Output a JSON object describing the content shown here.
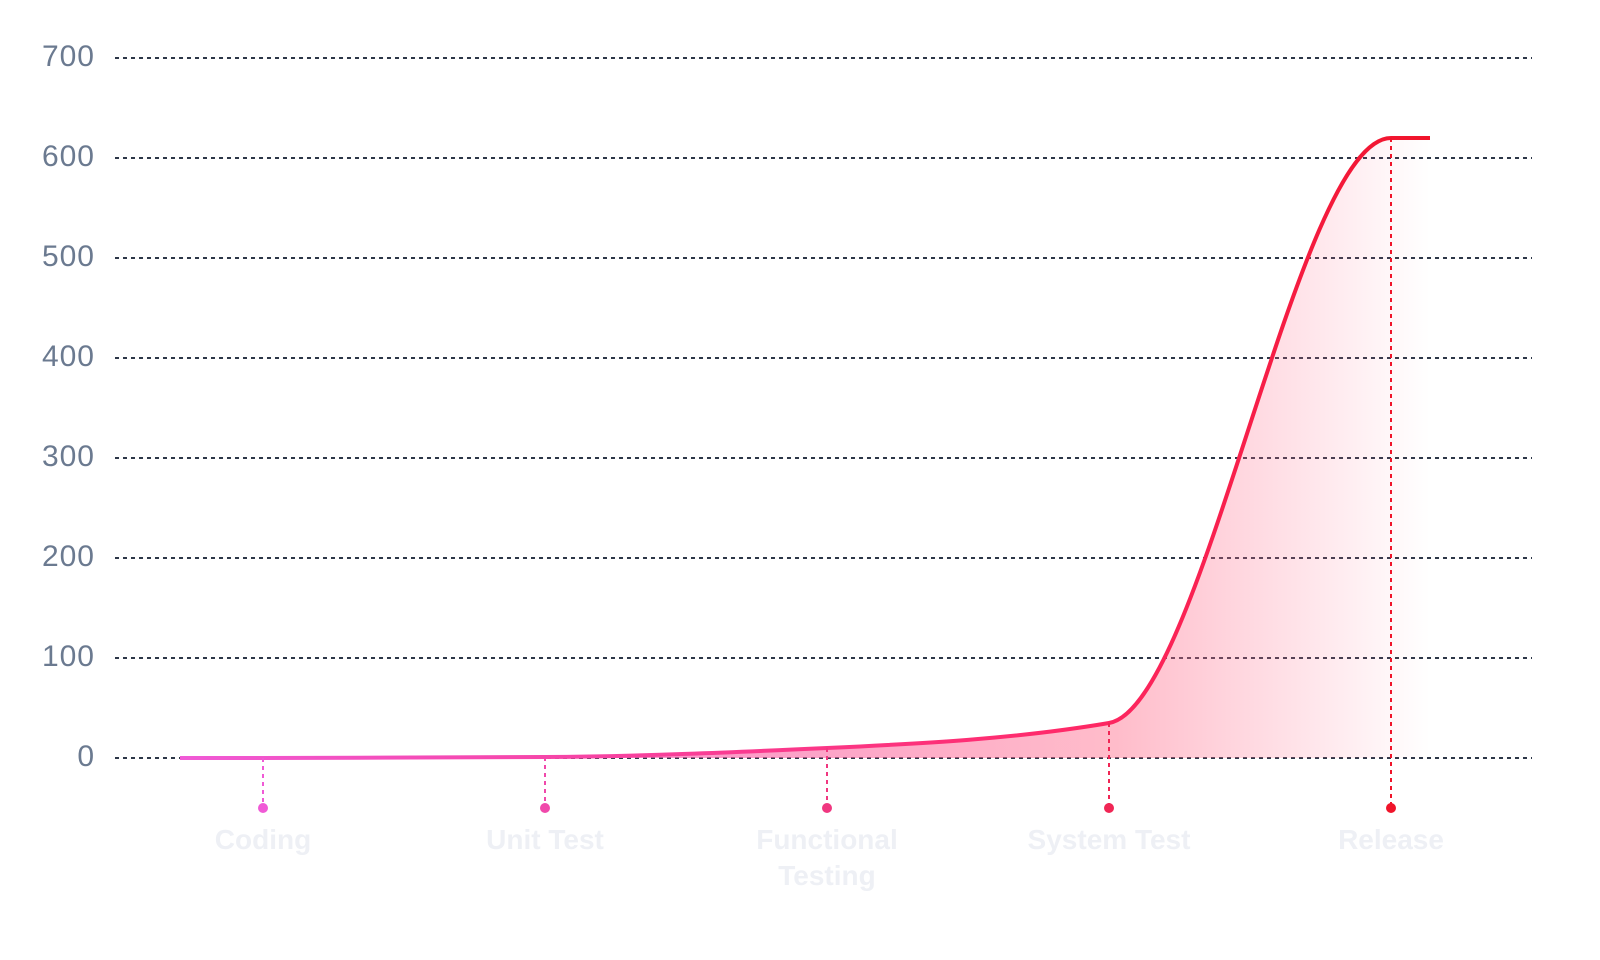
{
  "chart_data": {
    "type": "line",
    "categories": [
      "Coding",
      "Unit Test",
      "Functional Testing",
      "System Test",
      "Release"
    ],
    "series": [
      {
        "values": [
          0,
          1,
          10,
          35,
          620
        ],
        "color": "#f0142a"
      }
    ],
    "color_start": "#f05ad6",
    "ylim": [
      0,
      700
    ],
    "yticks": [
      0,
      100,
      200,
      300,
      400,
      500,
      600,
      700
    ],
    "grid": true
  }
}
